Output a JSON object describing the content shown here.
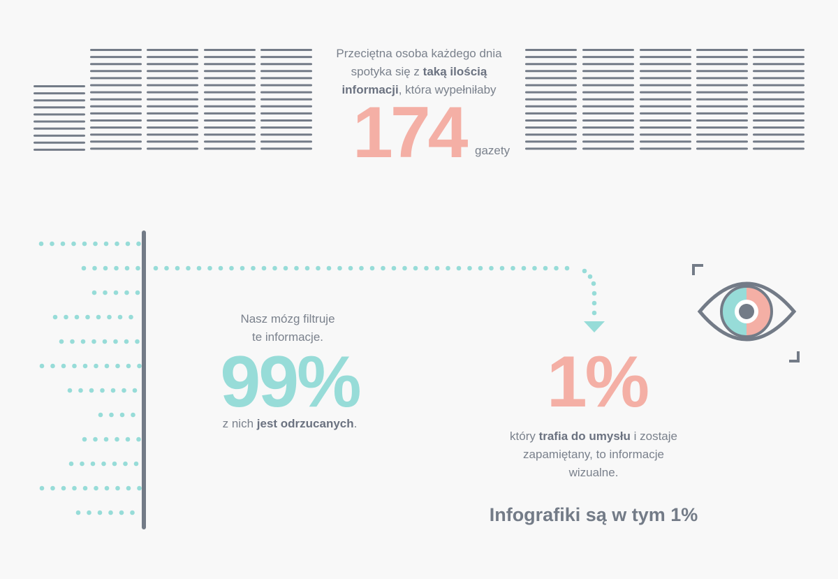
{
  "intro": {
    "line1": "Przeciętna osoba każdego dnia",
    "line2_pre": "spotyka się z ",
    "line2_bold": "taką ilością",
    "line3_bold": "informacji",
    "line3_post": ", która wypełniłaby",
    "number": "174",
    "unit": "gazety"
  },
  "filter": {
    "line1": "Nasz mózg filtruje",
    "line2": "te informacje.",
    "percent": "99%",
    "rejected_pre": "z nich ",
    "rejected_bold": "jest odrzucanych",
    "rejected_post": "."
  },
  "remembered": {
    "percent": "1%",
    "line1_pre": "który ",
    "line1_bold": "trafia do umysłu",
    "line1_post": " i zostaje",
    "line2": "zapamiętany, to informacje",
    "line3": "wizualne."
  },
  "tagline": "Infografiki są w tym 1%",
  "icons": [
    "newspaper-stacks",
    "eye-icon",
    "dotted-arrow"
  ],
  "colors": {
    "gray": "#737b87",
    "teal": "#97dcd8",
    "salmon": "#f4afa5",
    "background": "#f8f8f8"
  }
}
